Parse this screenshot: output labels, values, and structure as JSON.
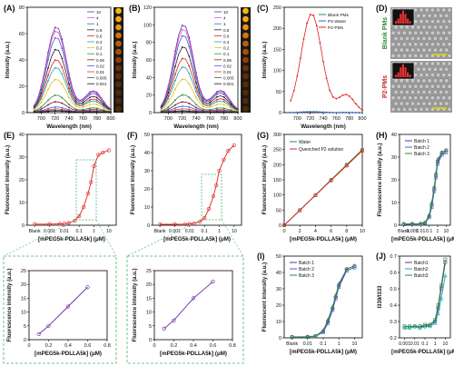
{
  "colors": {
    "red": "#e02020",
    "purple": "#6a2aa6",
    "blue": "#4a5cc9",
    "green": "#2e8b3a",
    "gray": "#8a8a8a",
    "box": "#49b36a",
    "pink": "#d35bc9",
    "black": "#222222",
    "cyan": "#19a7b3",
    "yellow": "#e3c21a",
    "darkred": "#8b1a1a"
  },
  "panels": {
    "A": {
      "letter": "(A)"
    },
    "B": {
      "letter": "(B)"
    },
    "C": {
      "letter": "(C)"
    },
    "D": {
      "letter": "(D)",
      "label_top": "Blank PMs",
      "label_bottom": "P2-PMs"
    },
    "E": {
      "letter": "(E)"
    },
    "F": {
      "letter": "(F)"
    },
    "G": {
      "letter": "(G)"
    },
    "H": {
      "letter": "(H)"
    },
    "I": {
      "letter": "(I)"
    },
    "J": {
      "letter": "(J)"
    }
  },
  "chart_data": [
    {
      "panel": "A",
      "type": "line",
      "xlabel": "Wavelength (nm)",
      "ylabel": "Intensity (a.u.)",
      "xlim": [
        680,
        800
      ],
      "ylim": [
        0,
        80
      ],
      "xticks": [
        700,
        720,
        740,
        760,
        780,
        800
      ],
      "yticks": [
        0,
        20,
        40,
        60,
        80
      ],
      "legend": [
        "10",
        "4",
        "1",
        "0.8",
        "0.6",
        "0.4",
        "0.2",
        "0.1",
        "0.05",
        "0.02",
        "0.01",
        "0.005",
        "0.001"
      ],
      "peaks": [
        65,
        62,
        57,
        48,
        40,
        34,
        25,
        13,
        8,
        4,
        2.5,
        1.5,
        0.8
      ]
    },
    {
      "panel": "B",
      "type": "line",
      "xlabel": "Wavelength (nm)",
      "ylabel": "Intensity (a.u.)",
      "xlim": [
        680,
        800
      ],
      "ylim": [
        0,
        120
      ],
      "xticks": [
        700,
        720,
        740,
        760,
        780,
        800
      ],
      "yticks": [
        0,
        20,
        40,
        60,
        80,
        100,
        120
      ],
      "legend": [
        "10",
        "4",
        "1",
        "0.8",
        "0.6",
        "0.4",
        "0.2",
        "0.1",
        "0.05",
        "0.02",
        "0.01",
        "0.005",
        "0.001"
      ],
      "peaks": [
        100,
        95,
        88,
        75,
        62,
        52,
        38,
        20,
        12,
        7,
        4,
        2,
        1
      ]
    },
    {
      "panel": "C",
      "type": "line",
      "xlabel": "Wavelength (nm)",
      "ylabel": "Intensity (a.u.)",
      "xlim": [
        680,
        800
      ],
      "ylim": [
        0,
        250
      ],
      "xticks": [
        700,
        720,
        740,
        760,
        780,
        800
      ],
      "yticks": [
        0,
        50,
        100,
        150,
        200,
        250
      ],
      "series": [
        {
          "name": "Blank PMs",
          "peak": 2
        },
        {
          "name": "P2-Water",
          "peak": 2
        },
        {
          "name": "P2-PMs",
          "peak": 235
        }
      ]
    },
    {
      "panel": "E",
      "type": "line",
      "xlabel": "[mPEG5k-PDLLA5k] (μM)",
      "ylabel": "Fluorescent intensity (a.u.)",
      "ylim": [
        0,
        40
      ],
      "yticks": [
        0,
        10,
        20,
        30,
        40
      ],
      "xtick_labels": [
        "Blank",
        "0.001",
        "0.01",
        "0.1",
        "1",
        "10"
      ],
      "points": [
        [
          -4,
          0.5
        ],
        [
          -3,
          0.5
        ],
        [
          -2.3,
          0.6
        ],
        [
          -2,
          0.7
        ],
        [
          -1.7,
          1
        ],
        [
          -1.3,
          2
        ],
        [
          -1,
          4
        ],
        [
          -0.7,
          8
        ],
        [
          -0.4,
          14
        ],
        [
          -0.2,
          19
        ],
        [
          0,
          26
        ],
        [
          0.3,
          31
        ],
        [
          0.6,
          32
        ],
        [
          1,
          33
        ]
      ]
    },
    {
      "panel": "E-inset",
      "type": "scatter",
      "xlabel": "[mPEG5k-PDLLA5k] (μM)",
      "ylabel": "Fluorescence intensity (a.u.)",
      "xlim": [
        0,
        0.8
      ],
      "ylim": [
        0,
        25
      ],
      "xticks": [
        0,
        0.2,
        0.4,
        0.6,
        0.8
      ],
      "yticks": [
        0,
        5,
        10,
        15,
        20,
        25
      ],
      "x": [
        0.1,
        0.2,
        0.4,
        0.6
      ],
      "y": [
        2,
        5,
        12,
        19
      ]
    },
    {
      "panel": "F",
      "type": "line",
      "xlabel": "[mPEG5k-PDLLA5k] (μM)",
      "ylabel": "Fluorescent intensity (a.u.)",
      "ylim": [
        0,
        50
      ],
      "yticks": [
        0,
        10,
        20,
        30,
        40,
        50
      ],
      "xtick_labels": [
        "Blank",
        "0.001",
        "0.01",
        "0.1",
        "1",
        "10"
      ],
      "points": [
        [
          -4,
          0.5
        ],
        [
          -3,
          0.5
        ],
        [
          -2.3,
          0.6
        ],
        [
          -2,
          0.7
        ],
        [
          -1.7,
          1
        ],
        [
          -1.3,
          2
        ],
        [
          -1,
          4
        ],
        [
          -0.7,
          9
        ],
        [
          -0.4,
          16
        ],
        [
          -0.2,
          22
        ],
        [
          0,
          30
        ],
        [
          0.3,
          36
        ],
        [
          0.6,
          41
        ],
        [
          1,
          44
        ]
      ]
    },
    {
      "panel": "F-inset",
      "type": "scatter",
      "xlabel": "[mPEG5k-PDLLA5k] (μM)",
      "ylabel": "Fluorescence intensity (a.u.)",
      "xlim": [
        0,
        0.8
      ],
      "ylim": [
        0,
        25
      ],
      "xticks": [
        0,
        0.2,
        0.4,
        0.6,
        0.8
      ],
      "yticks": [
        0,
        5,
        10,
        15,
        20,
        25
      ],
      "x": [
        0.1,
        0.2,
        0.4,
        0.6
      ],
      "y": [
        4,
        7,
        15,
        21
      ]
    },
    {
      "panel": "G",
      "type": "line",
      "xlabel": "[mPEG5k-PDLLA5k] (μM)",
      "ylabel": "Fluorescent intensity (a.u.)",
      "xlim": [
        0,
        10
      ],
      "ylim": [
        0,
        300
      ],
      "xticks": [
        0,
        2,
        4,
        6,
        8,
        10
      ],
      "yticks": [
        0,
        50,
        100,
        150,
        200,
        250,
        300
      ],
      "series": [
        {
          "name": "Water",
          "x": [
            0,
            2,
            4,
            6,
            8,
            10
          ],
          "y": [
            0,
            50,
            100,
            150,
            200,
            250
          ]
        },
        {
          "name": "Quenched P2 solution",
          "x": [
            0,
            2,
            4,
            6,
            8,
            10
          ],
          "y": [
            0,
            49,
            99,
            148,
            197,
            246
          ]
        }
      ]
    },
    {
      "panel": "H",
      "type": "line",
      "xlabel": "[mPEG5k-PDLLA5k] (μM)",
      "ylabel": "Fluorescence intensity (a.u.)",
      "ylim": [
        0,
        40
      ],
      "yticks": [
        0,
        10,
        20,
        30,
        40
      ],
      "xtick_labels": [
        "Blank",
        "0.001",
        "0.01",
        "0.1",
        "1",
        "10"
      ],
      "series": [
        {
          "name": "Batch 1",
          "points": [
            [
              -4,
              0.5
            ],
            [
              -3,
              0.5
            ],
            [
              -2,
              0.6
            ],
            [
              -1.5,
              1
            ],
            [
              -1,
              4
            ],
            [
              -0.7,
              9
            ],
            [
              -0.4,
              16
            ],
            [
              -0.2,
              22
            ],
            [
              0,
              28
            ],
            [
              0.5,
              32
            ],
            [
              1,
              33
            ]
          ]
        },
        {
          "name": "Batch 2",
          "points": [
            [
              -4,
              0.4
            ],
            [
              -3,
              0.5
            ],
            [
              -2,
              0.5
            ],
            [
              -1.5,
              0.9
            ],
            [
              -1,
              3.5
            ],
            [
              -0.7,
              8
            ],
            [
              -0.4,
              15
            ],
            [
              -0.2,
              21
            ],
            [
              0,
              27
            ],
            [
              0.5,
              31
            ],
            [
              1,
              32
            ]
          ]
        },
        {
          "name": "Batch 3",
          "points": [
            [
              -4,
              0.6
            ],
            [
              -3,
              0.6
            ],
            [
              -2,
              0.7
            ],
            [
              -1.5,
              1.1
            ],
            [
              -1,
              4.5
            ],
            [
              -0.7,
              10
            ],
            [
              -0.4,
              17
            ],
            [
              -0.2,
              23
            ],
            [
              0,
              29
            ],
            [
              0.5,
              32
            ],
            [
              1,
              33
            ]
          ]
        }
      ]
    },
    {
      "panel": "I",
      "type": "line",
      "xlabel": "[mPEG5k-PDLLA5k] (μM)",
      "ylabel": "Fluorescent intensity (a.u.)",
      "ylim": [
        0,
        50
      ],
      "yticks": [
        0,
        10,
        20,
        30,
        40,
        50
      ],
      "xtick_labels": [
        "Blank",
        "0.01",
        "0.1",
        "1",
        "10"
      ],
      "series": [
        {
          "name": "Batch 1",
          "points": [
            [
              -3,
              0.5
            ],
            [
              -2,
              0.6
            ],
            [
              -1.5,
              1
            ],
            [
              -1,
              4
            ],
            [
              -0.7,
              10
            ],
            [
              -0.4,
              18
            ],
            [
              -0.2,
              25
            ],
            [
              0,
              32
            ],
            [
              0.5,
              42
            ],
            [
              1,
              44
            ]
          ]
        },
        {
          "name": "Batch 2",
          "points": [
            [
              -3,
              0.4
            ],
            [
              -2,
              0.5
            ],
            [
              -1.5,
              0.9
            ],
            [
              -1,
              3.5
            ],
            [
              -0.7,
              9
            ],
            [
              -0.4,
              17
            ],
            [
              -0.2,
              24
            ],
            [
              0,
              31
            ],
            [
              0.5,
              41
            ],
            [
              1,
              43
            ]
          ]
        },
        {
          "name": "Batch 3",
          "points": [
            [
              -3,
              0.6
            ],
            [
              -2,
              0.7
            ],
            [
              -1.5,
              1.1
            ],
            [
              -1,
              4.5
            ],
            [
              -0.7,
              11
            ],
            [
              -0.4,
              19
            ],
            [
              -0.2,
              26
            ],
            [
              0,
              33
            ],
            [
              0.5,
              42
            ],
            [
              1,
              44
            ]
          ]
        }
      ]
    },
    {
      "panel": "J",
      "type": "line",
      "xlabel": "[mPEG5k-PDLLA5k] (μM)",
      "ylabel": "I339/I333",
      "ylim": [
        0.2,
        0.7
      ],
      "yticks": [
        0.2,
        0.3,
        0.4,
        0.5,
        0.6,
        0.7
      ],
      "xtick_labels": [
        "0.001",
        "0.01",
        "0.1",
        "1",
        "10"
      ],
      "series": [
        {
          "name": "Batch1",
          "points": [
            [
              -3,
              0.27
            ],
            [
              -2.5,
              0.27
            ],
            [
              -2,
              0.27
            ],
            [
              -1.5,
              0.27
            ],
            [
              -1,
              0.27
            ],
            [
              -0.5,
              0.28
            ],
            [
              0,
              0.3
            ],
            [
              0.3,
              0.38
            ],
            [
              0.6,
              0.5
            ],
            [
              1,
              0.66
            ]
          ]
        },
        {
          "name": "Batch2",
          "points": [
            [
              -3,
              0.26
            ],
            [
              -2.5,
              0.26
            ],
            [
              -2,
              0.27
            ],
            [
              -1.5,
              0.26
            ],
            [
              -1,
              0.27
            ],
            [
              -0.5,
              0.27
            ],
            [
              0,
              0.29
            ],
            [
              0.3,
              0.35
            ],
            [
              0.6,
              0.44
            ],
            [
              1,
              0.58
            ]
          ]
        },
        {
          "name": "Batch3",
          "points": [
            [
              -3,
              0.27
            ],
            [
              -2.5,
              0.27
            ],
            [
              -2,
              0.27
            ],
            [
              -1.5,
              0.27
            ],
            [
              -1,
              0.28
            ],
            [
              -0.5,
              0.28
            ],
            [
              0,
              0.31
            ],
            [
              0.3,
              0.4
            ],
            [
              0.6,
              0.52
            ],
            [
              1,
              0.68
            ]
          ]
        }
      ]
    }
  ]
}
